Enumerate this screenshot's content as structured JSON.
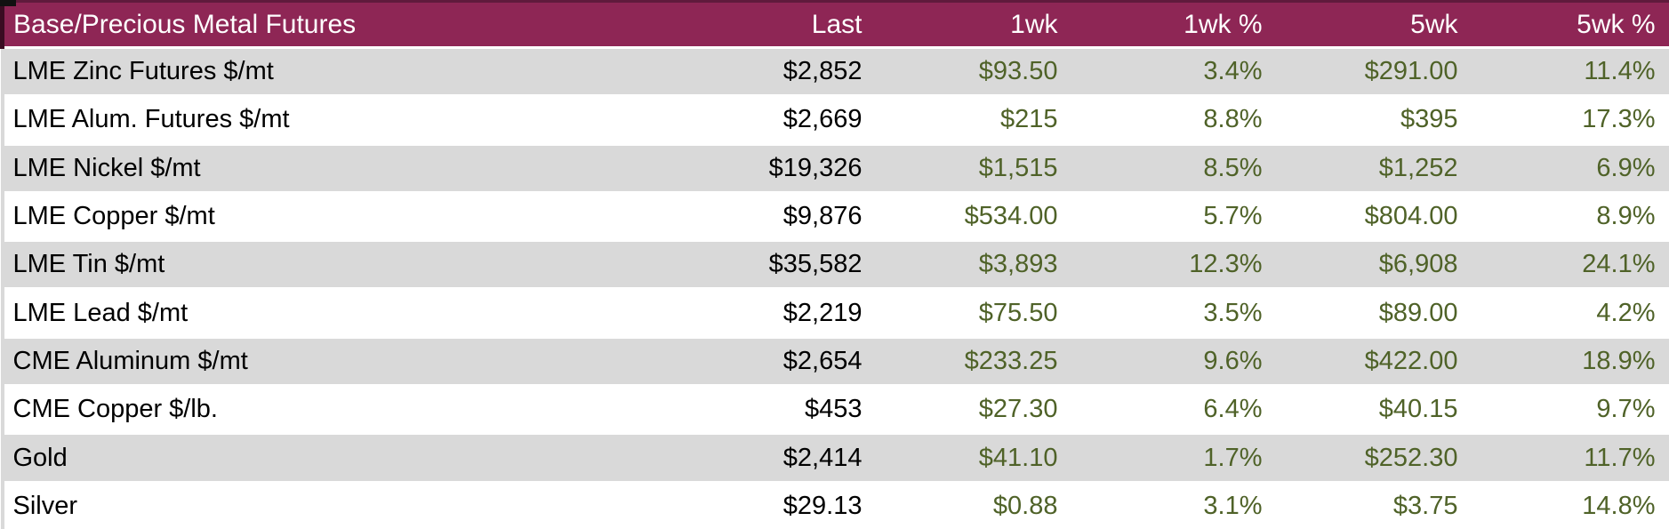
{
  "table": {
    "title": "Base/Precious Metal Futures",
    "columns": [
      "Last",
      "1wk",
      "1wk %",
      "5wk",
      "5wk %"
    ],
    "rows": [
      {
        "name": "LME Zinc Futures $/mt",
        "last": "$2,852",
        "wk1": "$93.50",
        "wk1_pct": "3.4%",
        "wk5": "$291.00",
        "wk5_pct": "11.4%"
      },
      {
        "name": "LME Alum. Futures $/mt",
        "last": "$2,669",
        "wk1": "$215",
        "wk1_pct": "8.8%",
        "wk5": "$395",
        "wk5_pct": "17.3%"
      },
      {
        "name": "LME Nickel $/mt",
        "last": "$19,326",
        "wk1": "$1,515",
        "wk1_pct": "8.5%",
        "wk5": "$1,252",
        "wk5_pct": "6.9%"
      },
      {
        "name": "LME Copper $/mt",
        "last": "$9,876",
        "wk1": "$534.00",
        "wk1_pct": "5.7%",
        "wk5": "$804.00",
        "wk5_pct": "8.9%"
      },
      {
        "name": "LME Tin $/mt",
        "last": "$35,582",
        "wk1": "$3,893",
        "wk1_pct": "12.3%",
        "wk5": "$6,908",
        "wk5_pct": "24.1%"
      },
      {
        "name": "LME Lead $/mt",
        "last": "$2,219",
        "wk1": "$75.50",
        "wk1_pct": "3.5%",
        "wk5": "$89.00",
        "wk5_pct": "4.2%"
      },
      {
        "name": "CME Aluminum $/mt",
        "last": "$2,654",
        "wk1": "$233.25",
        "wk1_pct": "9.6%",
        "wk5": "$422.00",
        "wk5_pct": "18.9%"
      },
      {
        "name": "CME Copper $/lb.",
        "last": "$453",
        "wk1": "$27.30",
        "wk1_pct": "6.4%",
        "wk5": "$40.15",
        "wk5_pct": "9.7%"
      },
      {
        "name": "Gold",
        "last": "$2,414",
        "wk1": "$41.10",
        "wk1_pct": "1.7%",
        "wk5": "$252.30",
        "wk5_pct": "11.7%"
      },
      {
        "name": "Silver",
        "last": "$29.13",
        "wk1": "$0.88",
        "wk1_pct": "3.1%",
        "wk5": "$3.75",
        "wk5_pct": "14.8%"
      }
    ]
  },
  "chart_data": {
    "type": "table",
    "title": "Base/Precious Metal Futures",
    "columns": [
      "Last",
      "1wk",
      "1wk %",
      "5wk",
      "5wk %"
    ],
    "row_labels": [
      "LME Zinc Futures $/mt",
      "LME Alum. Futures $/mt",
      "LME Nickel $/mt",
      "LME Copper $/mt",
      "LME Tin $/mt",
      "LME Lead $/mt",
      "CME Aluminum $/mt",
      "CME Copper $/lb.",
      "Gold",
      "Silver"
    ],
    "series": [
      {
        "name": "Last",
        "values": [
          2852,
          2669,
          19326,
          9876,
          35582,
          2219,
          2654,
          453,
          2414,
          29.13
        ]
      },
      {
        "name": "1wk",
        "values": [
          93.5,
          215,
          1515,
          534.0,
          3893,
          75.5,
          233.25,
          27.3,
          41.1,
          0.88
        ]
      },
      {
        "name": "1wk %",
        "values": [
          3.4,
          8.8,
          8.5,
          5.7,
          12.3,
          3.5,
          9.6,
          6.4,
          1.7,
          3.1
        ]
      },
      {
        "name": "5wk",
        "values": [
          291.0,
          395,
          1252,
          804.0,
          6908,
          89.0,
          422.0,
          40.15,
          252.3,
          3.75
        ]
      },
      {
        "name": "5wk %",
        "values": [
          11.4,
          17.3,
          6.9,
          8.9,
          24.1,
          4.2,
          18.9,
          9.7,
          11.7,
          14.8
        ]
      }
    ]
  },
  "colors": {
    "header_bg": "#8E2655",
    "header_text": "#FFFFFF",
    "row_stripe": "#D9D9D9",
    "row_white": "#FFFFFF",
    "value_text": "#000000",
    "change_text": "#4F6228"
  }
}
